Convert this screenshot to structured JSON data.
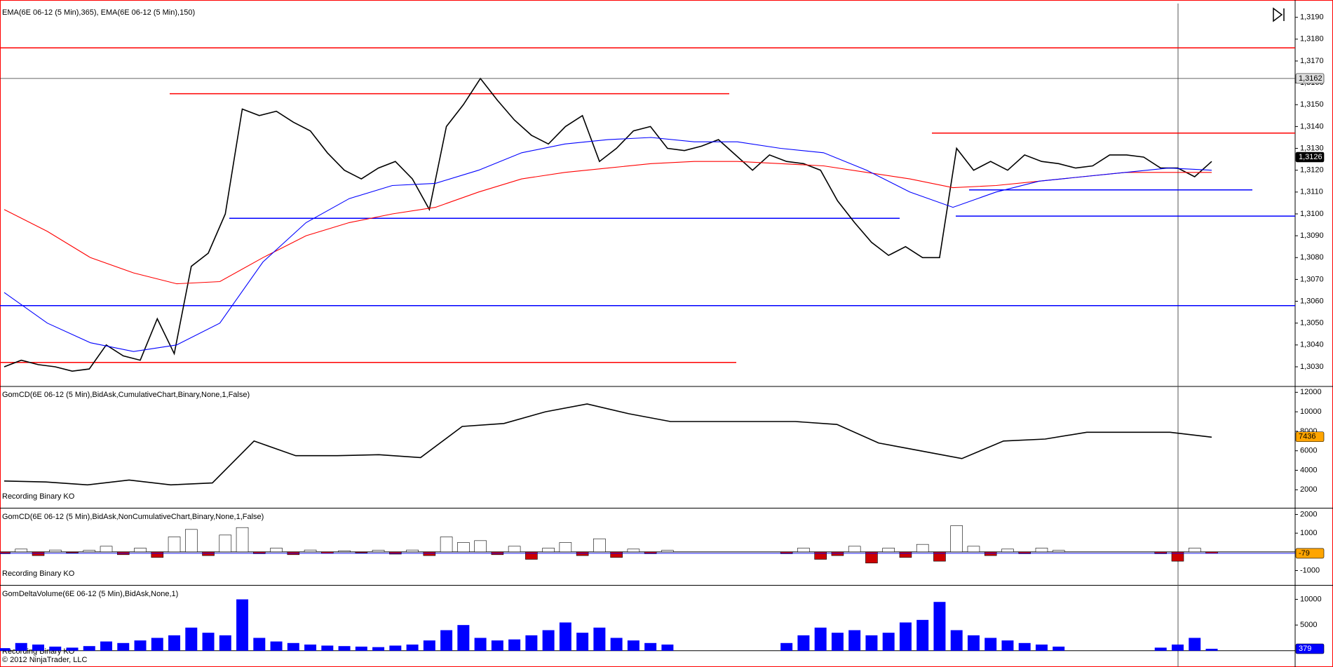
{
  "chart_data": [
    {
      "type": "line",
      "title": "EMA(6E 06-12 (5 Min),365), EMA(6E 06-12 (5 Min),150)",
      "ylim": [
        1.3021,
        1.3196
      ],
      "yticks": [
        {
          "value": 1.303,
          "label": "1,3030"
        },
        {
          "value": 1.304,
          "label": "1,3040"
        },
        {
          "value": 1.305,
          "label": "1,3050"
        },
        {
          "value": 1.306,
          "label": "1,3060"
        },
        {
          "value": 1.307,
          "label": "1,3070"
        },
        {
          "value": 1.308,
          "label": "1,3080"
        },
        {
          "value": 1.309,
          "label": "1,3090"
        },
        {
          "value": 1.31,
          "label": "1,3100"
        },
        {
          "value": 1.311,
          "label": "1,3110"
        },
        {
          "value": 1.312,
          "label": "1,3120"
        },
        {
          "value": 1.313,
          "label": "1,3130"
        },
        {
          "value": 1.314,
          "label": "1,3140"
        },
        {
          "value": 1.315,
          "label": "1,3150"
        },
        {
          "value": 1.316,
          "label": "1,3160"
        },
        {
          "value": 1.317,
          "label": "1,3170"
        },
        {
          "value": 1.318,
          "label": "1,3180"
        },
        {
          "value": 1.319,
          "label": "1,3190"
        }
      ],
      "series": [
        {
          "color": "#000000",
          "values": [
            1.303,
            1.3033,
            1.3031,
            1.303,
            1.3028,
            1.3029,
            1.304,
            1.3035,
            1.3033,
            1.3052,
            1.3036,
            1.3076,
            1.3082,
            1.31,
            1.3148,
            1.3145,
            1.3147,
            1.3142,
            1.3138,
            1.3128,
            1.312,
            1.3116,
            1.3121,
            1.3124,
            1.3116,
            1.3102,
            1.314,
            1.315,
            1.3162,
            1.3152,
            1.3143,
            1.3136,
            1.3132,
            1.314,
            1.3145,
            1.3124,
            1.313,
            1.3138,
            1.314,
            1.313,
            1.3129,
            1.3131,
            1.3134,
            1.3127,
            1.312,
            1.3127,
            1.3124,
            1.3123,
            1.312,
            1.3106,
            1.3096,
            1.3087,
            1.3081,
            1.3085,
            1.308,
            1.308,
            1.313,
            1.312,
            1.3124,
            1.312,
            1.3127,
            1.3124,
            1.3123,
            1.3121,
            1.3122,
            1.3127,
            1.3127,
            1.3126,
            1.3121,
            1.3121,
            1.3117,
            1.3124
          ]
        },
        {
          "color": "#ff0000",
          "values": [
            1.3102,
            1.3092,
            1.308,
            1.3073,
            1.3068,
            1.3069,
            1.308,
            1.309,
            1.3096,
            1.31,
            1.3103,
            1.311,
            1.3116,
            1.3119,
            1.3121,
            1.3123,
            1.3124,
            1.3124,
            1.3123,
            1.3122,
            1.3119,
            1.3116,
            1.3112,
            1.3113,
            1.3115,
            1.3117,
            1.3119,
            1.3119,
            1.3119
          ]
        },
        {
          "color": "#0000ff",
          "values": [
            1.3064,
            1.305,
            1.3041,
            1.3037,
            1.304,
            1.305,
            1.3078,
            1.3096,
            1.3107,
            1.3113,
            1.3114,
            1.312,
            1.3128,
            1.3132,
            1.3134,
            1.3135,
            1.3133,
            1.3133,
            1.313,
            1.3128,
            1.312,
            1.311,
            1.3103,
            1.311,
            1.3115,
            1.3117,
            1.3119,
            1.3121,
            1.312
          ]
        }
      ],
      "hlines": [
        {
          "value": 1.3176,
          "color": "#ff0000"
        },
        {
          "value": 1.3155,
          "color": "#ff0000"
        },
        {
          "value": 1.3032,
          "color": "#ff0000"
        },
        {
          "value": 1.3137,
          "color": "#ff0000"
        },
        {
          "value": 1.3098,
          "color": "#0000ff"
        },
        {
          "value": 1.3058,
          "color": "#0000ff"
        },
        {
          "value": 1.3111,
          "color": "#0000ff"
        },
        {
          "value": 1.3099,
          "color": "#0000ff"
        }
      ],
      "markers": [
        {
          "value": 1.3162,
          "label": "1,3162"
        },
        {
          "value": 1.3126,
          "label": "1,3126"
        }
      ]
    },
    {
      "type": "line",
      "title": "GomCD(6E 06-12 (5 Min),BidAsk,CumulativeChart,Binary,None,1,False)",
      "label": "Recording Binary KO",
      "ylim": [
        150,
        12600
      ],
      "yticks": [
        2000,
        4000,
        6000,
        8000,
        10000,
        12000
      ],
      "series": [
        {
          "color": "#000000",
          "values": [
            2900,
            2800,
            2500,
            3000,
            2500,
            2700,
            7000,
            5500,
            5500,
            5600,
            5300,
            8500,
            8800,
            10000,
            10800,
            9800,
            9000,
            9000,
            9000,
            9000,
            8700,
            6800,
            6000,
            5200,
            7000,
            7200,
            7900,
            7900,
            7900,
            7400
          ]
        }
      ],
      "markers": [
        7436
      ]
    },
    {
      "type": "bar",
      "title": "GomCD(6E 06-12 (5 Min),BidAsk,NonCumulativeChart,Binary,None,1,False)",
      "label": "Recording Binary KO",
      "ylim": [
        -1770,
        2320
      ],
      "yticks": [
        -1000,
        1000,
        2000
      ],
      "colors": {
        "up": "#ffffff",
        "down": "#cc0000"
      },
      "values": [
        -100,
        150,
        -200,
        100,
        -50,
        80,
        300,
        -150,
        200,
        -300,
        800,
        1200,
        -200,
        900,
        1300,
        -100,
        200,
        -150,
        100,
        -80,
        60,
        -50,
        90,
        -120,
        100,
        -200,
        800,
        500,
        600,
        -150,
        300,
        -400,
        200,
        500,
        -200,
        700,
        -300,
        150,
        -100,
        80,
        null,
        null,
        null,
        null,
        null,
        null,
        -100,
        200,
        -400,
        -200,
        300,
        -600,
        200,
        -300,
        400,
        -500,
        1400,
        300,
        -200,
        150,
        -100,
        200,
        80,
        null,
        null,
        null,
        null,
        null,
        -100,
        -500,
        200,
        -79
      ],
      "markers": [
        -79
      ]
    },
    {
      "type": "bar",
      "title": "GomDeltaVolume(6E 06-12 (5 Min),BidAsk,None,1)",
      "label": "Recording Binary KO",
      "copyright": "© 2012 NinjaTrader, LLC",
      "ylim": [
        -3170,
        12670
      ],
      "yticks": [
        5000,
        10000
      ],
      "color": "#0000ff",
      "values": [
        500,
        1500,
        1200,
        800,
        600,
        900,
        1800,
        1500,
        2000,
        2500,
        3000,
        4500,
        3500,
        3000,
        10000,
        2500,
        1800,
        1500,
        1200,
        1000,
        900,
        800,
        700,
        1000,
        1200,
        2000,
        4000,
        5000,
        2500,
        2000,
        2200,
        3000,
        4000,
        5500,
        3500,
        4500,
        2500,
        2000,
        1500,
        1200,
        null,
        null,
        null,
        null,
        null,
        null,
        1500,
        3000,
        4500,
        3500,
        4000,
        3000,
        3500,
        5500,
        6000,
        9500,
        4000,
        3000,
        2500,
        2000,
        1500,
        1200,
        800,
        null,
        null,
        null,
        null,
        null,
        600,
        1200,
        2500,
        379
      ],
      "markers": [
        379
      ]
    }
  ]
}
